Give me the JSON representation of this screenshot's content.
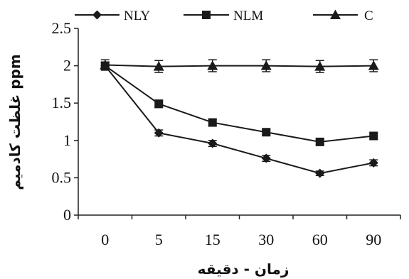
{
  "chart_data": {
    "type": "line",
    "categories": [
      "0",
      "5",
      "15",
      "30",
      "60",
      "90"
    ],
    "series": [
      {
        "name": "NLY",
        "marker": "diamond",
        "values": [
          2.0,
          1.1,
          0.96,
          0.76,
          0.56,
          0.7
        ],
        "errors": [
          0.05,
          0.04,
          0.04,
          0.04,
          0.03,
          0.04
        ]
      },
      {
        "name": "NLM",
        "marker": "square",
        "values": [
          2.0,
          1.49,
          1.24,
          1.11,
          0.98,
          1.06
        ],
        "errors": [
          0.05,
          0.05,
          0.04,
          0.04,
          0.04,
          0.04
        ]
      },
      {
        "name": "C",
        "marker": "triangle",
        "values": [
          2.01,
          1.99,
          2.0,
          2.0,
          1.99,
          2.0
        ],
        "errors": [
          0.07,
          0.08,
          0.08,
          0.08,
          0.08,
          0.08
        ]
      }
    ],
    "y_ticks": [
      "0",
      "0.5",
      "1",
      "1.5",
      "2",
      "2.5"
    ],
    "ylim": [
      0,
      2.5
    ],
    "xlabel": "زمان - دقیقه",
    "ylabel": "غلظت کادمیم ppm",
    "legend_position": "top",
    "grid": false,
    "line_color": "#1a1a1a"
  }
}
